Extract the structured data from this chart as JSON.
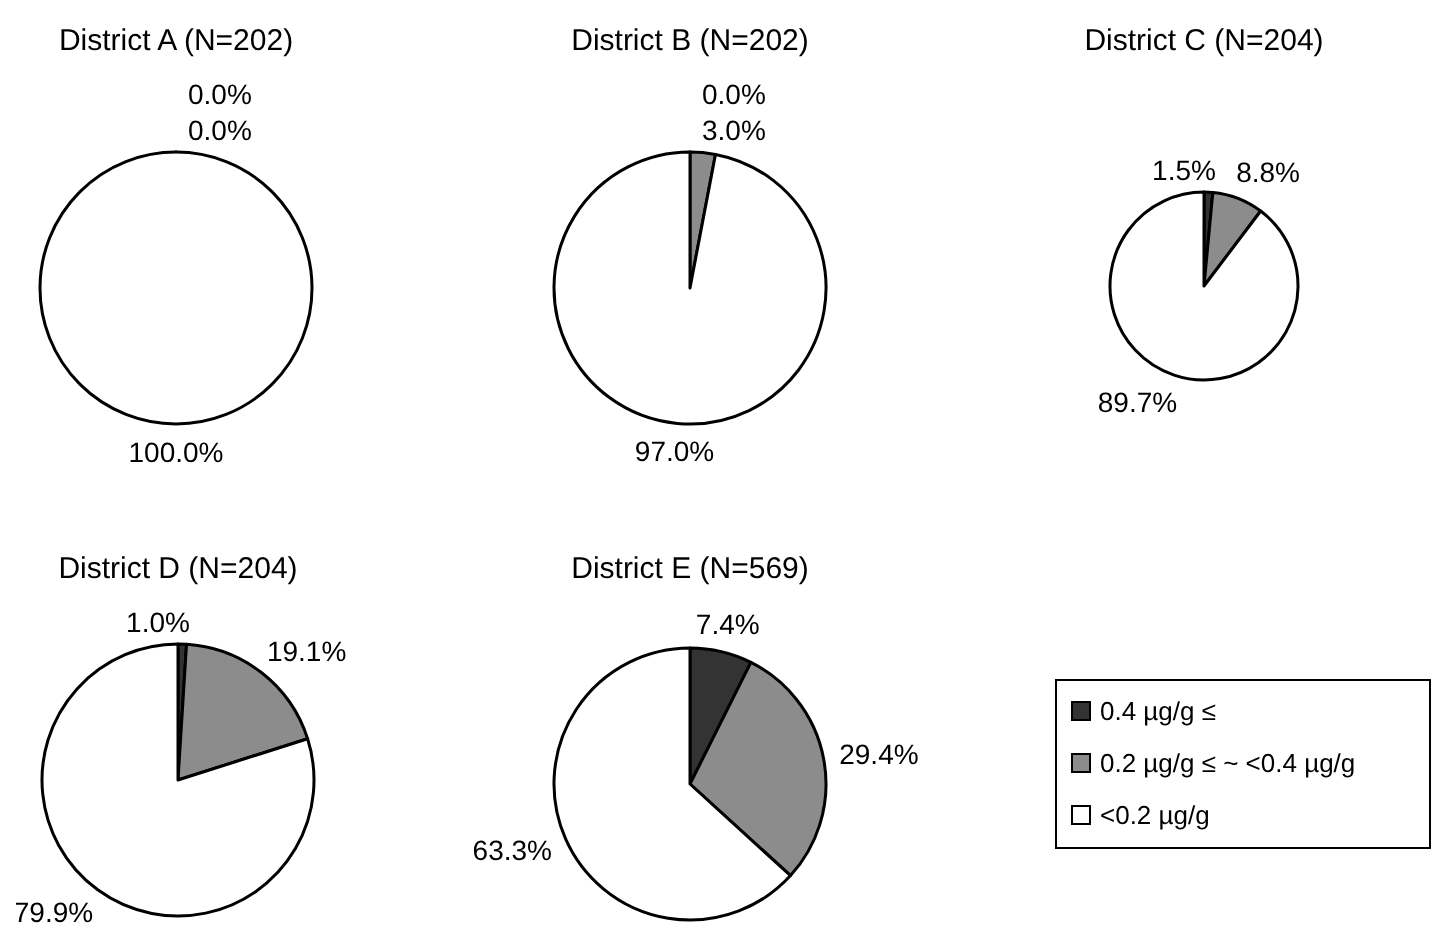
{
  "chart_data": [
    {
      "type": "pie",
      "title": "District A (N=202)",
      "categories": [
        null,
        null,
        null
      ],
      "values": [
        0.0,
        0.0,
        100.0
      ],
      "colors": [
        "#333333",
        "#8c8c8c",
        "#ffffff"
      ],
      "value_labels": [
        "0.0%",
        "0.0%",
        "100.0%"
      ]
    },
    {
      "type": "pie",
      "title": "District B (N=202)",
      "categories": [
        null,
        null,
        null
      ],
      "values": [
        0.0,
        3.0,
        97.0
      ],
      "colors": [
        "#333333",
        "#8c8c8c",
        "#ffffff"
      ],
      "value_labels": [
        "0.0%",
        "3.0%",
        "97.0%"
      ]
    },
    {
      "type": "pie",
      "title": "District C (N=204)",
      "categories": [
        null,
        null,
        null
      ],
      "values": [
        1.5,
        8.8,
        89.7
      ],
      "colors": [
        "#333333",
        "#8c8c8c",
        "#ffffff"
      ],
      "value_labels": [
        "1.5%",
        "8.8%",
        "89.7%"
      ]
    },
    {
      "type": "pie",
      "title": "District D (N=204)",
      "categories": [
        null,
        null,
        null
      ],
      "values": [
        1.0,
        19.1,
        79.9
      ],
      "colors": [
        "#333333",
        "#8c8c8c",
        "#ffffff"
      ],
      "value_labels": [
        "1.0%",
        "19.1%",
        "79.9%"
      ]
    },
    {
      "type": "pie",
      "title": "District E (N=569)",
      "categories": [
        "0.4 µg/g ≤",
        "0.2 µg/g ≤ ~ <0.4 µg/g",
        "<0.2 µg/g"
      ],
      "values": [
        7.4,
        29.4,
        63.3
      ],
      "colors": [
        "#333333",
        "#8c8c8c",
        "#ffffff"
      ],
      "value_labels": [
        "7.4%",
        "29.4%",
        "63.3%"
      ],
      "legend": "right"
    }
  ]
}
